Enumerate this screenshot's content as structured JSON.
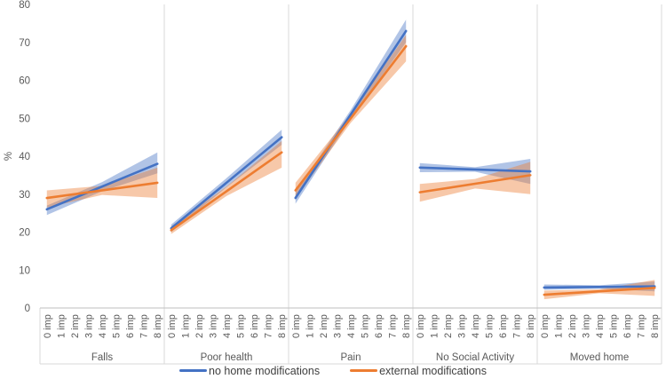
{
  "chart_data": {
    "type": "line",
    "title": "",
    "ylabel": "%",
    "ylim": [
      0,
      80
    ],
    "yticks": [
      "0",
      "10",
      "20",
      "30",
      "40",
      "50",
      "60",
      "70",
      "80"
    ],
    "x_tick_labels": [
      "0 imp",
      "1 imp",
      "2 imp",
      "3 imp",
      "4 imp",
      "5 imp",
      "6 imp",
      "7 imp",
      "8 imp"
    ],
    "grid": false,
    "legend_position": "bottom",
    "series_meta": [
      {
        "name": "no home modifications",
        "color": "#4472C4",
        "band_opacity": 0.42
      },
      {
        "name": "external modifications",
        "color": "#ED7D31",
        "band_opacity": 0.42
      }
    ],
    "panels": [
      {
        "category": "Falls",
        "series": [
          {
            "name": "no home modifications",
            "line": [
              26,
              38
            ],
            "band": {
              "start": [
                24.5,
                27
              ],
              "mid": [
                30.8,
                33.2
              ],
              "end": [
                35.5,
                41
              ]
            }
          },
          {
            "name": "external modifications",
            "line": [
              29,
              33
            ],
            "band": {
              "start": [
                26.5,
                31
              ],
              "mid": [
                29.8,
                32.2
              ],
              "end": [
                29,
                37
              ]
            }
          }
        ]
      },
      {
        "category": "Poor health",
        "series": [
          {
            "name": "no home modifications",
            "line": [
              21,
              45
            ],
            "band": {
              "start": [
                20,
                22
              ],
              "mid": [
                31.8,
                34.2
              ],
              "end": [
                43,
                47
              ]
            }
          },
          {
            "name": "external modifications",
            "line": [
              20.5,
              41
            ],
            "band": {
              "start": [
                19.5,
                21.5
              ],
              "mid": [
                29.5,
                32
              ],
              "end": [
                37,
                44
              ]
            }
          }
        ]
      },
      {
        "category": "Pain",
        "series": [
          {
            "name": "no home modifications",
            "line": [
              29,
              73
            ],
            "band": {
              "start": [
                27.5,
                30.5
              ],
              "mid": [
                49.8,
                52.2
              ],
              "end": [
                70,
                76
              ]
            }
          },
          {
            "name": "external modifications",
            "line": [
              31,
              69
            ],
            "band": {
              "start": [
                29,
                33
              ],
              "mid": [
                48.8,
                51.2
              ],
              "end": [
                65,
                72
              ]
            }
          }
        ]
      },
      {
        "category": "No Social Activity",
        "series": [
          {
            "name": "no home modifications",
            "line": [
              37,
              36
            ],
            "band": {
              "start": [
                35.8,
                38.2
              ],
              "mid": [
                35.9,
                37.1
              ],
              "end": [
                32.7,
                39.3
              ]
            }
          },
          {
            "name": "external modifications",
            "line": [
              30.5,
              35
            ],
            "band": {
              "start": [
                28,
                32.7
              ],
              "mid": [
                31.5,
                34
              ],
              "end": [
                30,
                38.5
              ]
            }
          }
        ]
      },
      {
        "category": "Moved home",
        "series": [
          {
            "name": "no home modifications",
            "line": [
              5.4,
              5.7
            ],
            "band": {
              "start": [
                4.8,
                6.2
              ],
              "mid": [
                5.1,
                6
              ],
              "end": [
                4.4,
                7
              ]
            }
          },
          {
            "name": "external modifications",
            "line": [
              3.5,
              5.3
            ],
            "band": {
              "start": [
                2.3,
                4.6
              ],
              "mid": [
                3.9,
                4.9
              ],
              "end": [
                3.2,
                7.4
              ]
            }
          }
        ]
      }
    ],
    "axis_colors": {
      "text": "#595959",
      "line": "#BFBFBF",
      "divider": "#D9D9D9"
    }
  }
}
